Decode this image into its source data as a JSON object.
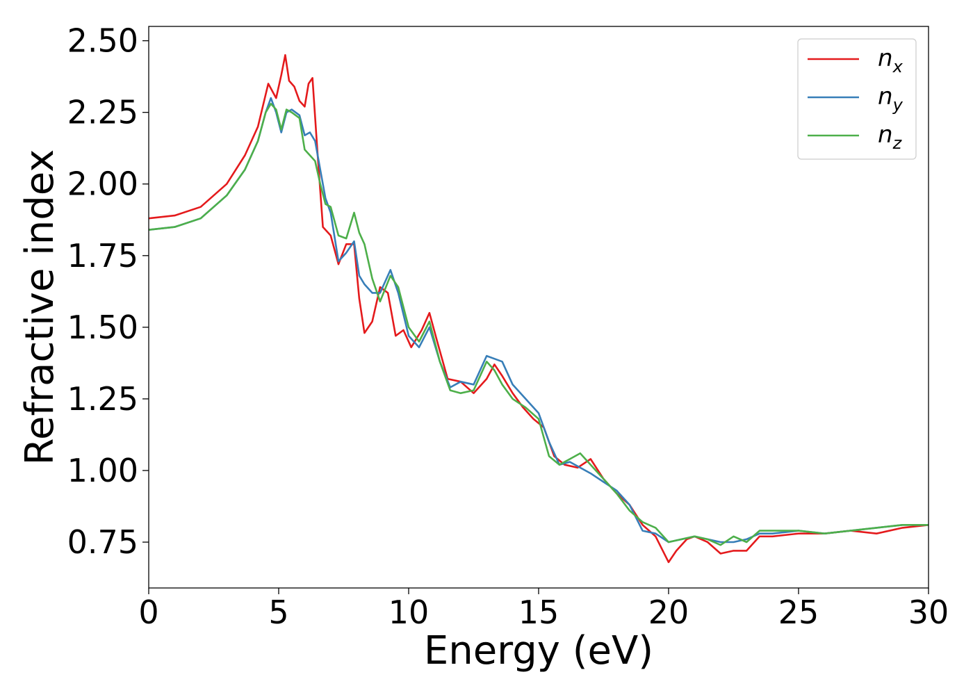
{
  "chart_data": {
    "type": "line",
    "title": "",
    "xlabel": "Energy (eV)",
    "ylabel": "Refractive index",
    "xlim": [
      0,
      30
    ],
    "ylim": [
      0.59,
      2.55
    ],
    "xticks": [
      0,
      5,
      10,
      15,
      20,
      25,
      30
    ],
    "xtick_labels": [
      "0",
      "5",
      "10",
      "15",
      "20",
      "25",
      "30"
    ],
    "yticks": [
      0.75,
      1.0,
      1.25,
      1.5,
      1.75,
      2.0,
      2.25,
      2.5
    ],
    "ytick_labels": [
      "0.75",
      "1.00",
      "1.25",
      "1.50",
      "1.75",
      "2.00",
      "2.25",
      "2.50"
    ],
    "grid": false,
    "legend": {
      "placement": "top-right"
    },
    "series": [
      {
        "name": "n_x",
        "label_base": "n",
        "label_sub": "x",
        "color": "#e41a1c",
        "x": [
          0,
          1,
          2,
          3,
          3.7,
          4.2,
          4.6,
          4.9,
          5.1,
          5.25,
          5.4,
          5.6,
          5.8,
          6.0,
          6.15,
          6.3,
          6.5,
          6.7,
          7.0,
          7.3,
          7.6,
          7.9,
          8.1,
          8.3,
          8.6,
          8.9,
          9.2,
          9.5,
          9.8,
          10.1,
          10.5,
          10.8,
          11.1,
          11.5,
          12.0,
          12.5,
          13.0,
          13.3,
          13.6,
          14.0,
          14.4,
          14.8,
          15.2,
          15.6,
          16.0,
          16.5,
          17.0,
          17.5,
          18.0,
          18.5,
          19.0,
          19.5,
          20.0,
          20.3,
          20.7,
          21.0,
          21.5,
          22.0,
          22.5,
          23.0,
          23.5,
          24.0,
          25.0,
          26.0,
          27.0,
          28.0,
          29.0,
          30.0
        ],
        "y": [
          1.88,
          1.89,
          1.92,
          2.0,
          2.1,
          2.2,
          2.35,
          2.3,
          2.38,
          2.45,
          2.36,
          2.34,
          2.29,
          2.27,
          2.35,
          2.37,
          2.1,
          1.85,
          1.82,
          1.72,
          1.79,
          1.79,
          1.6,
          1.48,
          1.52,
          1.64,
          1.62,
          1.47,
          1.49,
          1.43,
          1.49,
          1.55,
          1.45,
          1.32,
          1.31,
          1.27,
          1.32,
          1.37,
          1.33,
          1.27,
          1.22,
          1.18,
          1.15,
          1.05,
          1.02,
          1.01,
          1.04,
          0.97,
          0.92,
          0.88,
          0.81,
          0.77,
          0.68,
          0.72,
          0.76,
          0.77,
          0.75,
          0.71,
          0.72,
          0.72,
          0.77,
          0.77,
          0.78,
          0.78,
          0.79,
          0.78,
          0.8,
          0.81
        ]
      },
      {
        "name": "n_y",
        "label_base": "n",
        "label_sub": "y",
        "color": "#377eb8",
        "x": [
          0,
          1,
          2,
          3,
          3.7,
          4.2,
          4.5,
          4.7,
          4.9,
          5.1,
          5.3,
          5.5,
          5.8,
          6.0,
          6.2,
          6.4,
          6.6,
          6.8,
          7.0,
          7.3,
          7.6,
          7.9,
          8.1,
          8.3,
          8.6,
          8.9,
          9.3,
          9.6,
          10.0,
          10.4,
          10.8,
          11.2,
          11.6,
          12.0,
          12.5,
          13.0,
          13.3,
          13.6,
          14.0,
          14.5,
          15.0,
          15.4,
          15.8,
          16.2,
          16.6,
          17.0,
          17.5,
          18.0,
          18.5,
          19.0,
          19.5,
          20.0,
          20.5,
          21.0,
          21.5,
          22.0,
          22.5,
          23.0,
          23.5,
          24.0,
          25.0,
          26.0,
          27.0,
          28.0,
          29.0,
          30.0
        ],
        "y": [
          1.84,
          1.85,
          1.88,
          1.96,
          2.05,
          2.15,
          2.25,
          2.3,
          2.25,
          2.18,
          2.25,
          2.26,
          2.24,
          2.17,
          2.18,
          2.15,
          2.05,
          1.95,
          1.9,
          1.73,
          1.76,
          1.8,
          1.68,
          1.65,
          1.62,
          1.62,
          1.7,
          1.62,
          1.47,
          1.43,
          1.5,
          1.38,
          1.29,
          1.31,
          1.3,
          1.4,
          1.39,
          1.38,
          1.3,
          1.25,
          1.2,
          1.1,
          1.02,
          1.03,
          1.01,
          0.99,
          0.96,
          0.93,
          0.88,
          0.79,
          0.78,
          0.75,
          0.76,
          0.77,
          0.76,
          0.75,
          0.75,
          0.76,
          0.78,
          0.78,
          0.79,
          0.78,
          0.79,
          0.8,
          0.81,
          0.81
        ]
      },
      {
        "name": "n_z",
        "label_base": "n",
        "label_sub": "z",
        "color": "#4daf4a",
        "x": [
          0,
          1,
          2,
          3,
          3.7,
          4.2,
          4.5,
          4.7,
          4.9,
          5.1,
          5.3,
          5.5,
          5.8,
          6.0,
          6.2,
          6.4,
          6.6,
          6.8,
          7.0,
          7.3,
          7.6,
          7.9,
          8.1,
          8.3,
          8.6,
          8.9,
          9.3,
          9.6,
          10.0,
          10.4,
          10.8,
          11.2,
          11.6,
          12.0,
          12.5,
          13.0,
          13.3,
          13.6,
          14.0,
          14.5,
          15.0,
          15.4,
          15.8,
          16.2,
          16.6,
          17.0,
          17.5,
          18.0,
          18.5,
          19.0,
          19.5,
          20.0,
          20.5,
          21.0,
          21.5,
          22.0,
          22.5,
          23.0,
          23.5,
          24.0,
          25.0,
          26.0,
          27.0,
          28.0,
          29.0,
          30.0
        ],
        "y": [
          1.84,
          1.85,
          1.88,
          1.96,
          2.05,
          2.15,
          2.25,
          2.28,
          2.26,
          2.19,
          2.26,
          2.25,
          2.23,
          2.12,
          2.1,
          2.08,
          2.0,
          1.93,
          1.92,
          1.82,
          1.81,
          1.9,
          1.83,
          1.79,
          1.67,
          1.59,
          1.68,
          1.64,
          1.5,
          1.45,
          1.52,
          1.38,
          1.28,
          1.27,
          1.28,
          1.38,
          1.35,
          1.3,
          1.25,
          1.22,
          1.18,
          1.05,
          1.02,
          1.04,
          1.06,
          1.02,
          0.97,
          0.92,
          0.86,
          0.82,
          0.8,
          0.75,
          0.76,
          0.77,
          0.76,
          0.74,
          0.77,
          0.75,
          0.79,
          0.79,
          0.79,
          0.78,
          0.79,
          0.8,
          0.81,
          0.81
        ]
      }
    ]
  }
}
